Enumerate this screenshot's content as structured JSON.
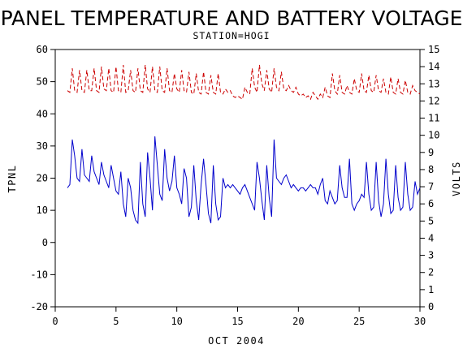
{
  "chart_data": {
    "type": "line",
    "title": "PANEL TEMPERATURE AND BATTERY VOLTAGE",
    "subtitle": "STATION=HOGI",
    "xlabel": "OCT 2004",
    "ylabel_left": "TPNL",
    "ylabel_right": "VOLTS",
    "xlim": [
      0,
      30
    ],
    "ylim_left": [
      -20,
      60
    ],
    "ylim_right": [
      0,
      15
    ],
    "x_ticks": [
      0,
      5,
      10,
      15,
      20,
      25,
      30
    ],
    "y_ticks_left": [
      -20,
      -10,
      0,
      10,
      20,
      30,
      40,
      50,
      60
    ],
    "y_ticks_right": [
      0,
      1,
      2,
      3,
      4,
      5,
      6,
      7,
      8,
      9,
      10,
      11,
      12,
      13,
      14,
      15
    ],
    "grid": false,
    "series": [
      {
        "name": "",
        "axis": "left",
        "color": "#0000cc",
        "style": "solid",
        "x": [
          1.0,
          1.2,
          1.4,
          1.6,
          1.8,
          2.0,
          2.2,
          2.4,
          2.6,
          2.8,
          3.0,
          3.2,
          3.4,
          3.6,
          3.8,
          4.0,
          4.2,
          4.4,
          4.6,
          4.8,
          5.0,
          5.2,
          5.4,
          5.6,
          5.8,
          6.0,
          6.2,
          6.4,
          6.6,
          6.8,
          7.0,
          7.2,
          7.4,
          7.6,
          7.8,
          8.0,
          8.2,
          8.4,
          8.6,
          8.8,
          9.0,
          9.2,
          9.4,
          9.6,
          9.8,
          10.0,
          10.2,
          10.4,
          10.6,
          10.8,
          11.0,
          11.2,
          11.4,
          11.6,
          11.8,
          12.0,
          12.2,
          12.4,
          12.6,
          12.8,
          13.0,
          13.2,
          13.4,
          13.6,
          13.8,
          14.0,
          14.2,
          14.4,
          14.6,
          14.8,
          15.0,
          15.2,
          15.4,
          15.6,
          15.8,
          16.0,
          16.2,
          16.4,
          16.6,
          16.8,
          17.0,
          17.2,
          17.4,
          17.6,
          17.8,
          18.0,
          18.2,
          18.4,
          18.6,
          18.8,
          19.0,
          19.2,
          19.4,
          19.6,
          19.8,
          20.0,
          20.2,
          20.4,
          20.6,
          20.8,
          21.0,
          21.2,
          21.4,
          21.6,
          21.8,
          22.0,
          22.2,
          22.4,
          22.6,
          22.8,
          23.0,
          23.2,
          23.4,
          23.6,
          23.8,
          24.0,
          24.2,
          24.4,
          24.6,
          24.8,
          25.0,
          25.2,
          25.4,
          25.6,
          25.8,
          26.0,
          26.2,
          26.4,
          26.6,
          26.8,
          27.0,
          27.2,
          27.4,
          27.6,
          27.8,
          28.0,
          28.2,
          28.4,
          28.6,
          28.8,
          29.0,
          29.2,
          29.4,
          29.6,
          29.8,
          30.0
        ],
        "values": [
          17,
          18,
          32,
          27,
          20,
          19,
          29,
          21,
          20,
          19,
          27,
          22,
          20,
          18,
          25,
          21,
          19,
          17,
          24,
          20,
          16,
          15,
          22,
          12,
          8,
          20,
          17,
          10,
          7,
          6,
          25,
          12,
          8,
          28,
          20,
          10,
          33,
          24,
          15,
          13,
          29,
          20,
          16,
          19,
          27,
          17,
          15,
          12,
          23,
          20,
          8,
          11,
          24,
          13,
          7,
          18,
          26,
          18,
          9,
          6,
          24,
          12,
          7,
          8,
          20,
          17,
          18,
          17,
          18,
          17,
          16,
          15,
          17,
          18,
          16,
          14,
          12,
          10,
          25,
          20,
          13,
          7,
          24,
          14,
          8,
          32,
          20,
          19,
          18,
          20,
          21,
          19,
          17,
          18,
          17,
          16,
          17,
          17,
          16,
          17,
          18,
          17,
          17,
          15,
          18,
          20,
          13,
          12,
          16,
          14,
          12,
          13,
          24,
          17,
          14,
          14,
          26,
          12,
          10,
          12,
          13,
          15,
          14,
          25,
          15,
          10,
          11,
          25,
          13,
          8,
          12,
          26,
          15,
          9,
          10,
          24,
          14,
          10,
          11,
          25,
          15,
          10,
          11,
          19,
          15,
          17
        ]
      },
      {
        "name": "",
        "axis": "right",
        "color": "#cc0000",
        "style": "dashed",
        "x": [
          1.0,
          1.2,
          1.4,
          1.6,
          1.8,
          2.0,
          2.2,
          2.4,
          2.6,
          2.8,
          3.0,
          3.2,
          3.4,
          3.6,
          3.8,
          4.0,
          4.2,
          4.4,
          4.6,
          4.8,
          5.0,
          5.2,
          5.4,
          5.6,
          5.8,
          6.0,
          6.2,
          6.4,
          6.6,
          6.8,
          7.0,
          7.2,
          7.4,
          7.6,
          7.8,
          8.0,
          8.2,
          8.4,
          8.6,
          8.8,
          9.0,
          9.2,
          9.4,
          9.6,
          9.8,
          10.0,
          10.2,
          10.4,
          10.6,
          10.8,
          11.0,
          11.2,
          11.4,
          11.6,
          11.8,
          12.0,
          12.2,
          12.4,
          12.6,
          12.8,
          13.0,
          13.2,
          13.4,
          13.6,
          13.8,
          14.0,
          14.2,
          14.4,
          14.6,
          14.8,
          15.0,
          15.2,
          15.4,
          15.6,
          15.8,
          16.0,
          16.2,
          16.4,
          16.6,
          16.8,
          17.0,
          17.2,
          17.4,
          17.6,
          17.8,
          18.0,
          18.2,
          18.4,
          18.6,
          18.8,
          19.0,
          19.2,
          19.4,
          19.6,
          19.8,
          20.0,
          20.2,
          20.4,
          20.6,
          20.8,
          21.0,
          21.2,
          21.4,
          21.6,
          21.8,
          22.0,
          22.2,
          22.4,
          22.6,
          22.8,
          23.0,
          23.2,
          23.4,
          23.6,
          23.8,
          24.0,
          24.2,
          24.4,
          24.6,
          24.8,
          25.0,
          25.2,
          25.4,
          25.6,
          25.8,
          26.0,
          26.2,
          26.4,
          26.6,
          26.8,
          27.0,
          27.2,
          27.4,
          27.6,
          27.8,
          28.0,
          28.2,
          28.4,
          28.6,
          28.8,
          29.0,
          29.2,
          29.4,
          29.6,
          29.8,
          30.0
        ],
        "values": [
          12.6,
          12.5,
          13.9,
          12.6,
          12.5,
          13.8,
          12.6,
          12.5,
          13.8,
          12.6,
          12.6,
          13.9,
          12.6,
          12.5,
          14.0,
          12.7,
          12.6,
          13.9,
          12.6,
          12.5,
          14.0,
          12.6,
          12.5,
          14.1,
          12.5,
          12.6,
          13.8,
          12.6,
          12.5,
          13.9,
          12.6,
          12.5,
          14.1,
          12.7,
          12.5,
          14.0,
          12.6,
          12.5,
          14.0,
          12.6,
          12.5,
          13.9,
          12.6,
          12.5,
          13.6,
          12.7,
          12.5,
          13.8,
          12.6,
          12.5,
          13.7,
          12.5,
          12.4,
          13.6,
          12.5,
          12.4,
          13.7,
          12.5,
          12.4,
          13.5,
          12.5,
          12.4,
          13.6,
          12.5,
          12.4,
          12.7,
          12.5,
          12.6,
          12.3,
          12.2,
          12.3,
          12.2,
          12.1,
          12.8,
          12.5,
          12.4,
          13.9,
          12.8,
          12.5,
          14.1,
          13.0,
          12.6,
          13.8,
          12.7,
          12.5,
          13.9,
          12.8,
          12.6,
          13.7,
          12.7,
          12.6,
          12.9,
          12.6,
          12.5,
          12.8,
          12.4,
          12.3,
          12.4,
          12.2,
          12.3,
          12.1,
          12.5,
          12.3,
          12.1,
          12.4,
          12.2,
          12.8,
          12.3,
          12.2,
          13.6,
          12.6,
          12.4,
          13.5,
          12.5,
          12.4,
          12.9,
          12.5,
          12.4,
          13.3,
          12.6,
          12.5,
          13.6,
          12.6,
          12.5,
          13.5,
          12.6,
          12.5,
          13.5,
          12.6,
          12.5,
          13.3,
          12.5,
          12.4,
          13.4,
          12.5,
          12.4,
          13.3,
          12.5,
          12.4,
          13.2,
          12.5,
          12.4,
          12.9,
          12.6,
          12.5,
          12.4
        ]
      }
    ]
  }
}
